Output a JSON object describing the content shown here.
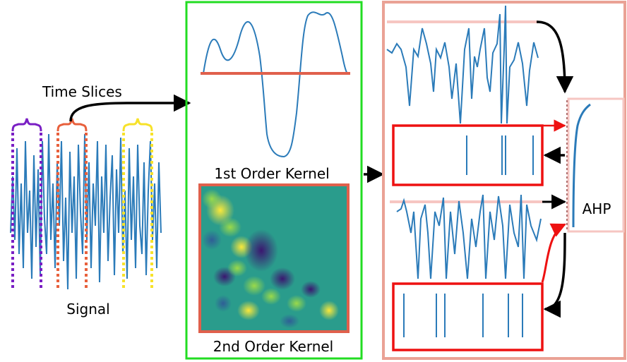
{
  "labels": {
    "time_slices": "Time Slices",
    "signal": "Signal",
    "first_order_kernel": "1st Order Kernel",
    "second_order_kernel": "2nd Order Kernel",
    "ahp": "AHP"
  },
  "colors": {
    "signal_line": "#2b7bb9",
    "kernel_panel_border": "#22dd22",
    "output_panel_border": "#eaa295",
    "spike_box_border": "#ee1111",
    "threshold_line": "#f6c6c2",
    "slice_purple": "#7a1fc4",
    "slice_orange": "#e8603c",
    "slice_yellow": "#f7e22a",
    "kernel_baseline": "#e0604c",
    "heatmap_background": "#2a9c8c",
    "arrow": "#000000"
  },
  "icons": [
    "purple-bracket-icon",
    "orange-bracket-icon",
    "yellow-bracket-icon"
  ]
}
